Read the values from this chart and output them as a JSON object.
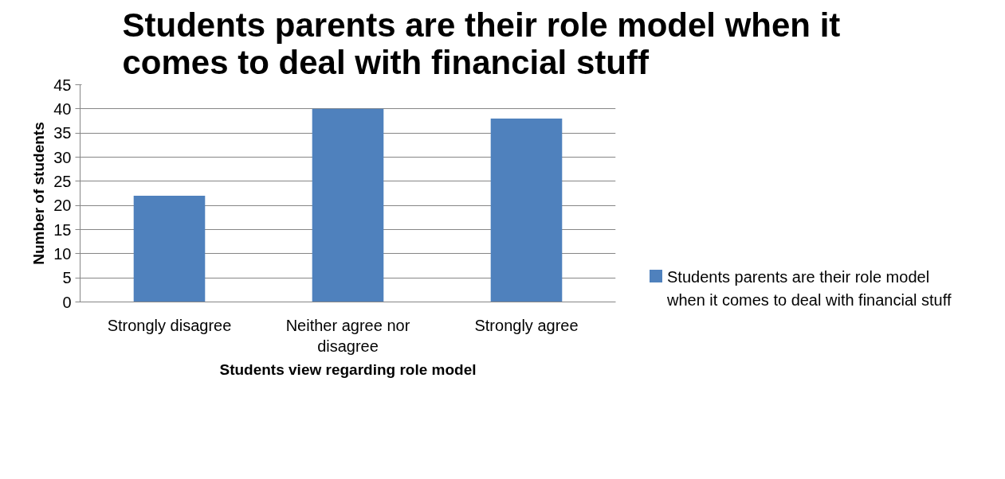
{
  "chart_data": {
    "type": "bar",
    "title": "Students parents are their role model when it comes to deal with financial stuff",
    "xlabel": "Students view regarding role model",
    "ylabel": "Number of students",
    "categories": [
      "Strongly disagree",
      "Neither agree nor disagree",
      "Strongly agree"
    ],
    "series": [
      {
        "name": "Students parents are their role model when it comes to deal with financial stuff",
        "color": "#4f81bd",
        "values": [
          22,
          40,
          38
        ]
      }
    ],
    "ylim": [
      0,
      45
    ],
    "yticks": [
      0,
      5,
      10,
      15,
      20,
      25,
      30,
      35,
      40,
      45
    ],
    "grid": "y",
    "legend": "right"
  }
}
